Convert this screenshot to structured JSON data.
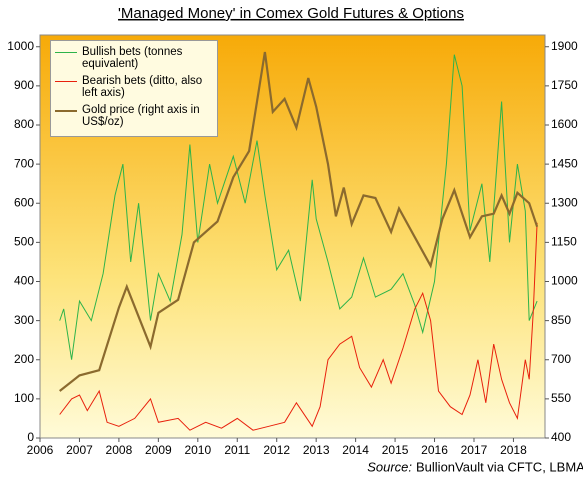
{
  "chart_data": {
    "type": "line",
    "title": "'Managed Money' in Comex Gold Futures & Options",
    "source_label": "Source:",
    "source": "BullionVault via CFTC, LBMA",
    "xlim": [
      2006,
      2018.8
    ],
    "xticks": [
      2006,
      2007,
      2008,
      2009,
      2010,
      2011,
      2012,
      2013,
      2014,
      2015,
      2016,
      2017,
      2018
    ],
    "ylim": [
      0,
      1030
    ],
    "yticks": [
      0,
      100,
      200,
      300,
      400,
      500,
      600,
      700,
      800,
      900,
      1000
    ],
    "y2lim": [
      400,
      1945
    ],
    "y2ticks": [
      400,
      550,
      700,
      850,
      1000,
      1150,
      1300,
      1450,
      1600,
      1750,
      1900
    ],
    "legend": "upper left",
    "series": [
      {
        "name": "Bullish bets (tonnes equivalent)",
        "color": "#2db34a",
        "width": 1,
        "x": [
          2006.5,
          2006.6,
          2006.8,
          2007.0,
          2007.3,
          2007.6,
          2007.9,
          2008.1,
          2008.3,
          2008.5,
          2008.8,
          2009.0,
          2009.3,
          2009.6,
          2009.8,
          2010.0,
          2010.3,
          2010.5,
          2010.9,
          2011.2,
          2011.5,
          2011.7,
          2012.0,
          2012.3,
          2012.6,
          2012.9,
          2013.0,
          2013.3,
          2013.6,
          2013.9,
          2014.2,
          2014.5,
          2014.9,
          2015.2,
          2015.5,
          2015.7,
          2016.0,
          2016.3,
          2016.5,
          2016.7,
          2016.9,
          2017.2,
          2017.4,
          2017.7,
          2017.9,
          2018.1,
          2018.3,
          2018.4,
          2018.6
        ],
        "values": [
          300,
          330,
          200,
          350,
          300,
          420,
          620,
          700,
          450,
          600,
          300,
          420,
          350,
          520,
          750,
          500,
          700,
          600,
          720,
          600,
          760,
          620,
          430,
          480,
          350,
          660,
          560,
          450,
          330,
          360,
          460,
          360,
          380,
          420,
          340,
          270,
          400,
          700,
          980,
          900,
          530,
          650,
          450,
          860,
          500,
          700,
          580,
          300,
          350
        ]
      },
      {
        "name": "Bearish bets (ditto, also left axis)",
        "color": "#e8200c",
        "width": 1,
        "x": [
          2006.5,
          2006.8,
          2007.0,
          2007.2,
          2007.5,
          2007.7,
          2008.0,
          2008.4,
          2008.8,
          2009.0,
          2009.5,
          2009.8,
          2010.2,
          2010.6,
          2011.0,
          2011.4,
          2011.8,
          2012.2,
          2012.5,
          2012.9,
          2013.1,
          2013.3,
          2013.6,
          2013.9,
          2014.1,
          2014.4,
          2014.7,
          2014.9,
          2015.2,
          2015.5,
          2015.7,
          2015.9,
          2016.1,
          2016.4,
          2016.7,
          2016.9,
          2017.1,
          2017.3,
          2017.5,
          2017.7,
          2017.9,
          2018.1,
          2018.3,
          2018.4,
          2018.5,
          2018.6
        ],
        "values": [
          60,
          100,
          110,
          70,
          120,
          40,
          30,
          50,
          100,
          40,
          50,
          20,
          40,
          25,
          50,
          20,
          30,
          40,
          90,
          30,
          80,
          200,
          240,
          260,
          180,
          130,
          200,
          140,
          230,
          330,
          370,
          300,
          120,
          80,
          60,
          110,
          200,
          90,
          240,
          150,
          90,
          50,
          200,
          150,
          320,
          550
        ]
      },
      {
        "name": "Gold price (right axis in US$/oz)",
        "color": "#8b6a2e",
        "width": 2.2,
        "axis": "y2",
        "x": [
          2006.5,
          2007.0,
          2007.5,
          2008.0,
          2008.2,
          2008.8,
          2009.0,
          2009.5,
          2009.9,
          2010.5,
          2010.9,
          2011.3,
          2011.7,
          2011.9,
          2012.2,
          2012.5,
          2012.8,
          2013.0,
          2013.3,
          2013.5,
          2013.7,
          2013.9,
          2014.2,
          2014.5,
          2014.9,
          2015.1,
          2015.5,
          2015.9,
          2016.2,
          2016.5,
          2016.9,
          2017.2,
          2017.5,
          2017.7,
          2017.9,
          2018.1,
          2018.4,
          2018.6
        ],
        "values": [
          580,
          640,
          660,
          900,
          980,
          750,
          880,
          930,
          1150,
          1230,
          1400,
          1500,
          1880,
          1650,
          1700,
          1590,
          1780,
          1670,
          1450,
          1250,
          1360,
          1220,
          1330,
          1320,
          1190,
          1280,
          1170,
          1060,
          1240,
          1350,
          1170,
          1250,
          1260,
          1330,
          1260,
          1340,
          1300,
          1210
        ]
      }
    ]
  }
}
